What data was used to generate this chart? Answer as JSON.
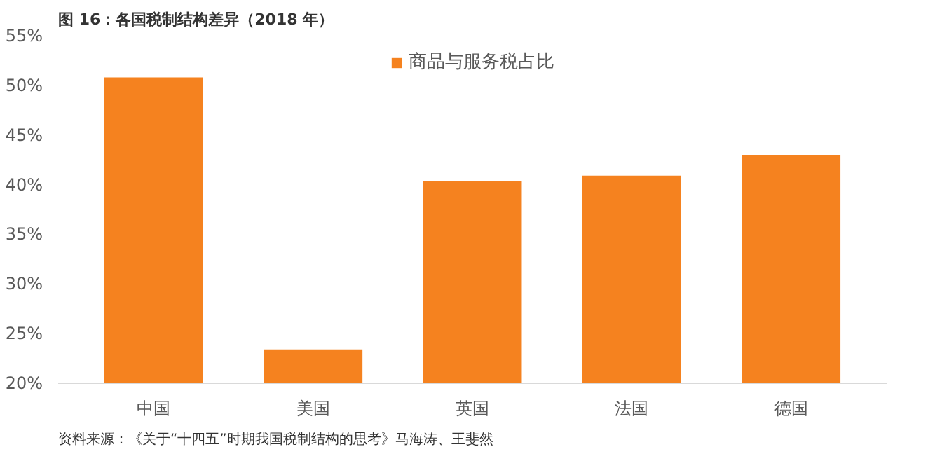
{
  "chart_data": {
    "type": "bar",
    "title": "图 16：各国税制结构差异（2018 年）",
    "categories": [
      "中国",
      "美国",
      "英国",
      "法国",
      "德国"
    ],
    "series": [
      {
        "name": "商品与服务税占比",
        "color": "#f5821f",
        "values": [
          50.8,
          23.4,
          40.4,
          40.9,
          43.0
        ]
      }
    ],
    "ylim": [
      20,
      55
    ],
    "yticks": [
      {
        "value": 20,
        "label": "20%"
      },
      {
        "value": 25,
        "label": "25%"
      },
      {
        "value": 30,
        "label": "30%"
      },
      {
        "value": 35,
        "label": "35%"
      },
      {
        "value": 40,
        "label": "40%"
      },
      {
        "value": 45,
        "label": "45%"
      },
      {
        "value": 50,
        "label": "50%"
      },
      {
        "value": 55,
        "label": "55%"
      }
    ],
    "grid": false,
    "legend": "top",
    "annotations": [
      "资料来源：《关于“十四五”时期我国税制结构的思考》马海涛、王斐然"
    ]
  }
}
